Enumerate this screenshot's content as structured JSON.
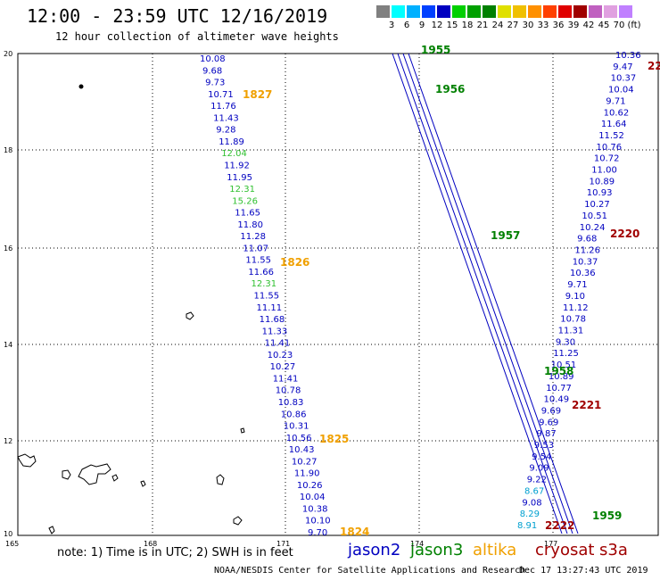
{
  "header": {
    "title": "12:00 - 23:59 UTC 12/16/2019",
    "subtitle": "12 hour collection of altimeter wave heights"
  },
  "colorbar": {
    "colors": [
      "#808080",
      "#00ffff",
      "#00b0ff",
      "#0040ff",
      "#0000c0",
      "#00d000",
      "#00a000",
      "#008000",
      "#e0e000",
      "#f0c000",
      "#ff9000",
      "#ff4000",
      "#e00000",
      "#a00000",
      "#c060c0",
      "#e0a0e0",
      "#c080ff",
      "#ffffff"
    ],
    "labels": [
      "3",
      "6",
      "9",
      "12",
      "15",
      "18",
      "21",
      "24",
      "27",
      "30",
      "33",
      "36",
      "39",
      "42",
      "45",
      "70",
      "(ft)"
    ]
  },
  "axes": {
    "x_ticks": [
      "165",
      "168",
      "171",
      "174",
      "177"
    ],
    "y_ticks": [
      "20",
      "18",
      "16",
      "14",
      "12",
      "10"
    ]
  },
  "tracks": [
    {
      "name": "jason2 west",
      "color": "#0000c0",
      "values": [
        "10.08",
        "9.68",
        "9.73",
        "10.71",
        "11.76",
        "11.43",
        "9.28",
        "11.89",
        "12.04",
        "11.92",
        "11.95",
        "12.31",
        "15.26",
        "11.65",
        "11.80",
        "11.28",
        "11.07",
        "11.55",
        "11.66",
        "12.31",
        "11.55",
        "11.11",
        "11.68",
        "11.33",
        "11.41",
        "10.23",
        "10.27",
        "11.41",
        "10.78",
        "10.83",
        "10.86",
        "10.31",
        "10.56",
        "10.43",
        "10.27",
        "11.90",
        "10.26",
        "10.04",
        "10.38",
        "10.10",
        "9.70"
      ]
    },
    {
      "name": "jason2 east",
      "color": "#0000c0",
      "values": [
        "10.36",
        "9.47",
        "10.37",
        "10.04",
        "9.71",
        "10.62",
        "11.64",
        "11.52",
        "10.76",
        "10.72",
        "11.00",
        "10.89",
        "10.93",
        "10.27",
        "10.51",
        "10.24",
        "9.68",
        "11.26",
        "10.37",
        "10.36",
        "9.71",
        "9.10",
        "11.12",
        "10.78",
        "11.31",
        "9.30",
        "11.25",
        "10.51",
        "10.89",
        "10.77",
        "10.49",
        "9.69",
        "9.69",
        "9.87",
        "9.53",
        "9.54",
        "9.09",
        "9.22",
        "8.67",
        "9.08",
        "8.29",
        "8.91"
      ]
    }
  ],
  "time_labels": [
    {
      "text": "1827",
      "sat": "altika"
    },
    {
      "text": "1826",
      "sat": "altika"
    },
    {
      "text": "1825",
      "sat": "altika"
    },
    {
      "text": "1824",
      "sat": "altika"
    },
    {
      "text": "1955",
      "sat": "jason3"
    },
    {
      "text": "1956",
      "sat": "jason3"
    },
    {
      "text": "1957",
      "sat": "jason3"
    },
    {
      "text": "1958",
      "sat": "jason3"
    },
    {
      "text": "1959",
      "sat": "jason3"
    },
    {
      "text": "2220",
      "sat": "cryosat"
    },
    {
      "text": "2221",
      "sat": "cryosat"
    },
    {
      "text": "2222",
      "sat": "cryosat"
    },
    {
      "text": "22",
      "sat": "cryosat"
    }
  ],
  "footer": {
    "note": "note: 1) Time is in UTC; 2) SWH is in feet",
    "legend": [
      {
        "name": "jason2",
        "color": "#0000c0"
      },
      {
        "name": "jason3",
        "color": "#008000"
      },
      {
        "name": "altika",
        "color": "#f0a000"
      },
      {
        "name": "cryosat",
        "color": "#a00000"
      },
      {
        "name": "s3a",
        "color": "#a00000"
      }
    ],
    "credit": "NOAA/NESDIS Center for Satellite Applications and Research",
    "timestamp": "Dec 17 13:27:43 UTC 2019"
  }
}
